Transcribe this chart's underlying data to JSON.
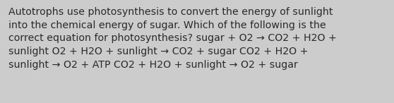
{
  "background_color": "#cccccc",
  "text_color": "#2a2a2a",
  "font_size": 10.2,
  "text": "Autotrophs use photosynthesis to convert the energy of sunlight\ninto the chemical energy of sugar. Which of the following is the\ncorrect equation for photosynthesis? sugar + O2 → CO2 + H2O +\nsunlight O2 + H2O + sunlight → CO2 + sugar CO2 + H2O +\nsunlight → O2 + ATP CO2 + H2O + sunlight → O2 + sugar",
  "figsize": [
    5.58,
    1.46
  ],
  "dpi": 100
}
